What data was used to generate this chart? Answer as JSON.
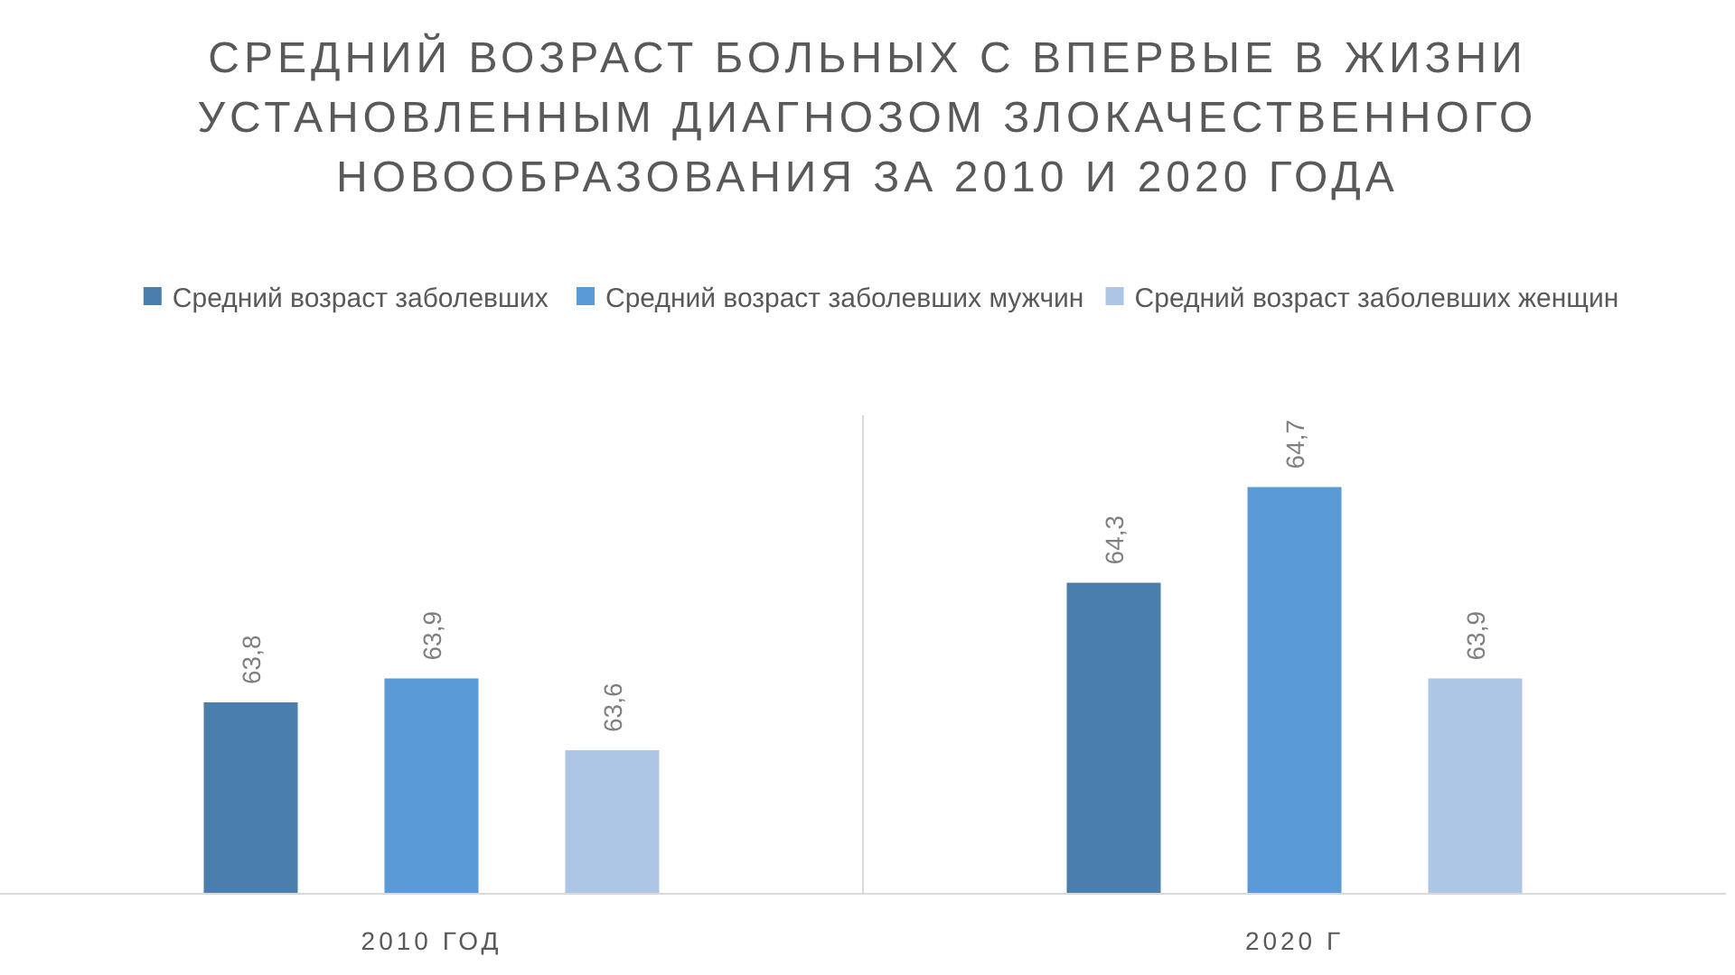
{
  "chart_data": {
    "type": "bar",
    "title": "СРЕДНИЙ ВОЗРАСТ БОЛЬНЫХ С ВПЕРВЫЕ В ЖИЗНИ УСТАНОВЛЕННЫМ ДИАГНОЗОМ ЗЛОКАЧЕСТВЕННОГО НОВООБРАЗОВАНИЯ ЗА 2010 И 2020 ГОДА",
    "categories": [
      "2010 ГОД",
      "2020 Г"
    ],
    "series": [
      {
        "name": "Средний возраст заболевших",
        "color": "#4a7ead",
        "values": [
          63.8,
          64.3
        ],
        "value_labels": [
          "63,8",
          "64,3"
        ]
      },
      {
        "name": "Средний возраст заболевших мужчин",
        "color": "#5b9bd5",
        "values": [
          63.9,
          64.7
        ],
        "value_labels": [
          "63,9",
          "64,7"
        ]
      },
      {
        "name": "Средний возраст заболевших женщин",
        "color": "#adc6e6",
        "values": [
          63.6,
          63.9
        ],
        "value_labels": [
          "63,6",
          "63,9"
        ]
      }
    ],
    "ylim": [
      63,
      65
    ],
    "tick_labels": "x",
    "legend": "top",
    "grid": "x"
  }
}
